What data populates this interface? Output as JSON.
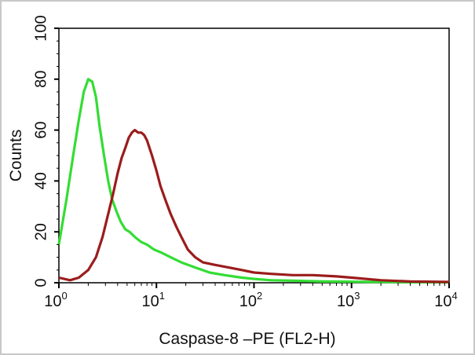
{
  "chart_data": {
    "type": "line",
    "title": "",
    "xlabel": "Caspase-8 –PE (FL2-H)",
    "ylabel": "Counts",
    "x_scale": "log",
    "xlim": [
      1,
      10000
    ],
    "ylim": [
      0,
      100
    ],
    "x_ticks": [
      {
        "value": 1,
        "base": "10",
        "exp": "0"
      },
      {
        "value": 10,
        "base": "10",
        "exp": "1"
      },
      {
        "value": 100,
        "base": "10",
        "exp": "2"
      },
      {
        "value": 1000,
        "base": "10",
        "exp": "3"
      },
      {
        "value": 10000,
        "base": "10",
        "exp": "4"
      }
    ],
    "y_ticks": [
      "0",
      "20",
      "40",
      "60",
      "80",
      "100"
    ],
    "grid": false,
    "series": [
      {
        "color": "#33dd33",
        "x": [
          1.0,
          1.2,
          1.4,
          1.6,
          1.8,
          2.0,
          2.2,
          2.4,
          2.6,
          2.9,
          3.2,
          3.5,
          3.9,
          4.3,
          4.8,
          5.3,
          6.0,
          7.0,
          8.0,
          9.5,
          11,
          14,
          18,
          25,
          35,
          50,
          75,
          100,
          150,
          250,
          500,
          1000,
          2000,
          5000,
          10000
        ],
        "y": [
          15,
          33,
          50,
          64,
          75,
          80,
          79,
          73,
          62,
          50,
          40,
          33,
          28,
          24,
          21,
          20,
          18,
          16,
          15,
          13,
          12,
          10,
          8,
          6,
          4,
          3,
          2,
          1.5,
          1,
          0.8,
          0.5,
          0.4,
          0.3,
          0.2,
          0.2
        ]
      },
      {
        "color": "#9b1c1c",
        "x": [
          1.0,
          1.3,
          1.6,
          2.0,
          2.4,
          2.8,
          3.2,
          3.6,
          4.0,
          4.4,
          4.8,
          5.2,
          5.6,
          6.0,
          6.5,
          7.0,
          7.5,
          8.0,
          9.0,
          10,
          11,
          12.5,
          14,
          16,
          18,
          21,
          25,
          30,
          40,
          55,
          75,
          100,
          150,
          250,
          400,
          700,
          1000,
          2000,
          4000,
          10000
        ],
        "y": [
          2,
          1,
          2,
          5,
          10,
          18,
          27,
          35,
          43,
          49,
          53,
          57,
          59,
          60,
          59,
          59,
          58,
          56,
          50,
          44,
          38,
          32,
          27,
          22,
          18,
          13,
          10,
          8,
          7,
          6,
          5,
          4,
          3.5,
          3,
          3,
          2.5,
          2,
          1,
          0.5,
          0.3
        ]
      }
    ]
  }
}
